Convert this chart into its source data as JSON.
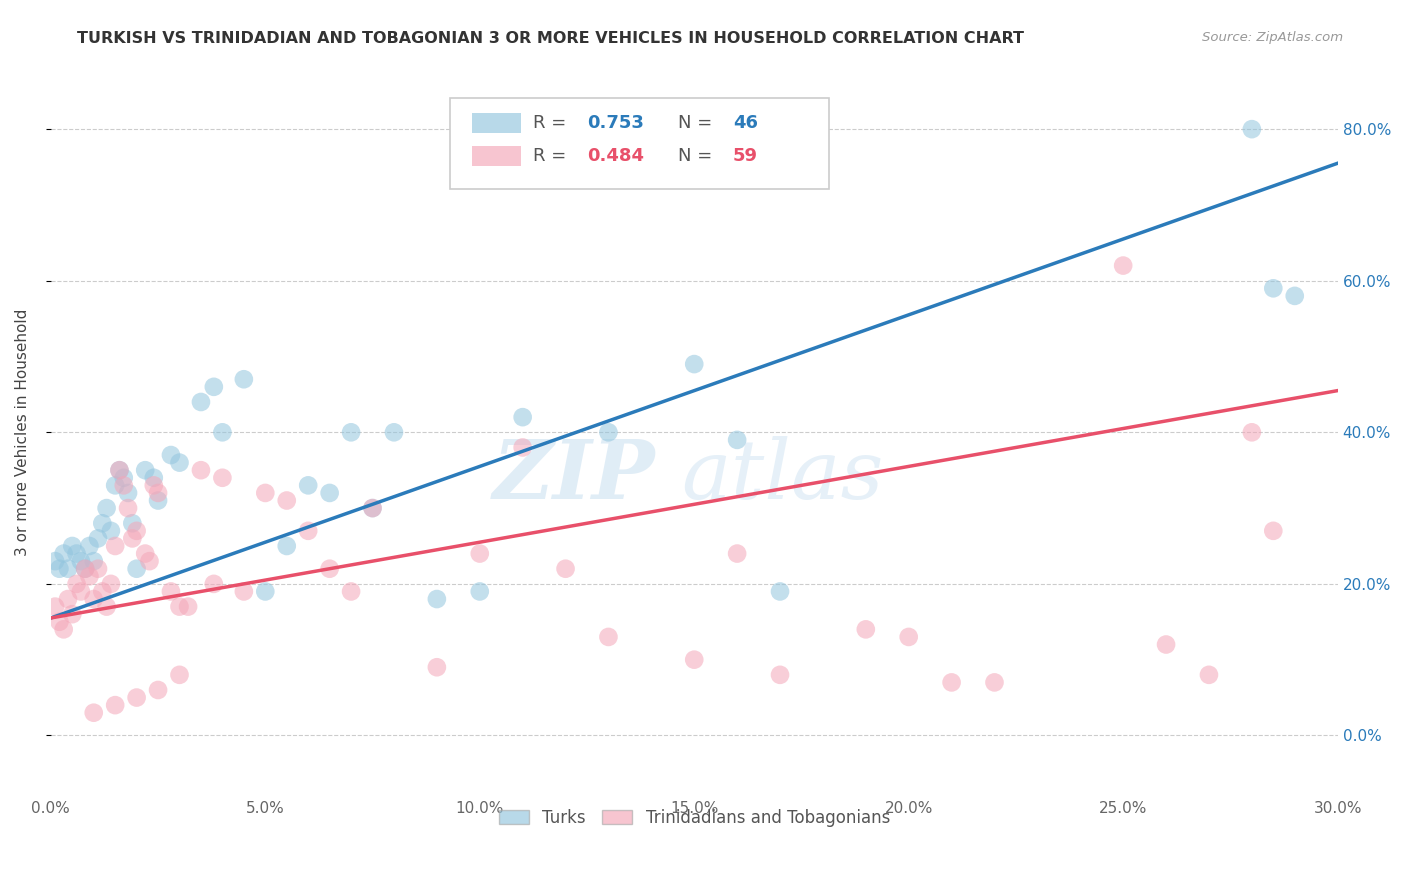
{
  "title": "TURKISH VS TRINIDADIAN AND TOBAGONIAN 3 OR MORE VEHICLES IN HOUSEHOLD CORRELATION CHART",
  "source": "Source: ZipAtlas.com",
  "ylabel": "3 or more Vehicles in Household",
  "xlim": [
    0.0,
    0.3
  ],
  "ylim": [
    -0.08,
    0.88
  ],
  "legend_blue_r": "0.753",
  "legend_blue_n": "46",
  "legend_pink_r": "0.484",
  "legend_pink_n": "59",
  "legend_blue_label": "Turks",
  "legend_pink_label": "Trinidadians and Tobagonians",
  "blue_color": "#92c5de",
  "pink_color": "#f4a6b8",
  "blue_line_color": "#2b7bba",
  "pink_line_color": "#e8506a",
  "watermark_zip": "ZIP",
  "watermark_atlas": "atlas",
  "blue_line_x0": 0.0,
  "blue_line_y0": 0.155,
  "blue_line_x1": 0.3,
  "blue_line_y1": 0.755,
  "pink_line_x0": 0.0,
  "pink_line_y0": 0.155,
  "pink_line_x1": 0.3,
  "pink_line_y1": 0.455,
  "blue_x": [
    0.001,
    0.002,
    0.003,
    0.004,
    0.005,
    0.006,
    0.007,
    0.008,
    0.009,
    0.01,
    0.011,
    0.012,
    0.013,
    0.014,
    0.015,
    0.016,
    0.017,
    0.018,
    0.019,
    0.02,
    0.022,
    0.024,
    0.025,
    0.028,
    0.03,
    0.035,
    0.038,
    0.04,
    0.045,
    0.05,
    0.055,
    0.06,
    0.065,
    0.07,
    0.075,
    0.08,
    0.09,
    0.1,
    0.11,
    0.13,
    0.15,
    0.16,
    0.17,
    0.28,
    0.285,
    0.29
  ],
  "blue_y": [
    0.23,
    0.22,
    0.24,
    0.22,
    0.25,
    0.24,
    0.23,
    0.22,
    0.25,
    0.23,
    0.26,
    0.28,
    0.3,
    0.27,
    0.33,
    0.35,
    0.34,
    0.32,
    0.28,
    0.22,
    0.35,
    0.34,
    0.31,
    0.37,
    0.36,
    0.44,
    0.46,
    0.4,
    0.47,
    0.19,
    0.25,
    0.33,
    0.32,
    0.4,
    0.3,
    0.4,
    0.18,
    0.19,
    0.42,
    0.4,
    0.49,
    0.39,
    0.19,
    0.8,
    0.59,
    0.58
  ],
  "pink_x": [
    0.001,
    0.002,
    0.003,
    0.004,
    0.005,
    0.006,
    0.007,
    0.008,
    0.009,
    0.01,
    0.011,
    0.012,
    0.013,
    0.014,
    0.015,
    0.016,
    0.017,
    0.018,
    0.019,
    0.02,
    0.022,
    0.023,
    0.024,
    0.025,
    0.028,
    0.03,
    0.032,
    0.035,
    0.038,
    0.04,
    0.045,
    0.05,
    0.055,
    0.06,
    0.065,
    0.07,
    0.075,
    0.09,
    0.1,
    0.11,
    0.12,
    0.13,
    0.15,
    0.16,
    0.17,
    0.19,
    0.2,
    0.21,
    0.22,
    0.25,
    0.26,
    0.27,
    0.28,
    0.285,
    0.01,
    0.015,
    0.02,
    0.025,
    0.03
  ],
  "pink_y": [
    0.17,
    0.15,
    0.14,
    0.18,
    0.16,
    0.2,
    0.19,
    0.22,
    0.21,
    0.18,
    0.22,
    0.19,
    0.17,
    0.2,
    0.25,
    0.35,
    0.33,
    0.3,
    0.26,
    0.27,
    0.24,
    0.23,
    0.33,
    0.32,
    0.19,
    0.17,
    0.17,
    0.35,
    0.2,
    0.34,
    0.19,
    0.32,
    0.31,
    0.27,
    0.22,
    0.19,
    0.3,
    0.09,
    0.24,
    0.38,
    0.22,
    0.13,
    0.1,
    0.24,
    0.08,
    0.14,
    0.13,
    0.07,
    0.07,
    0.62,
    0.12,
    0.08,
    0.4,
    0.27,
    0.03,
    0.04,
    0.05,
    0.06,
    0.08
  ]
}
